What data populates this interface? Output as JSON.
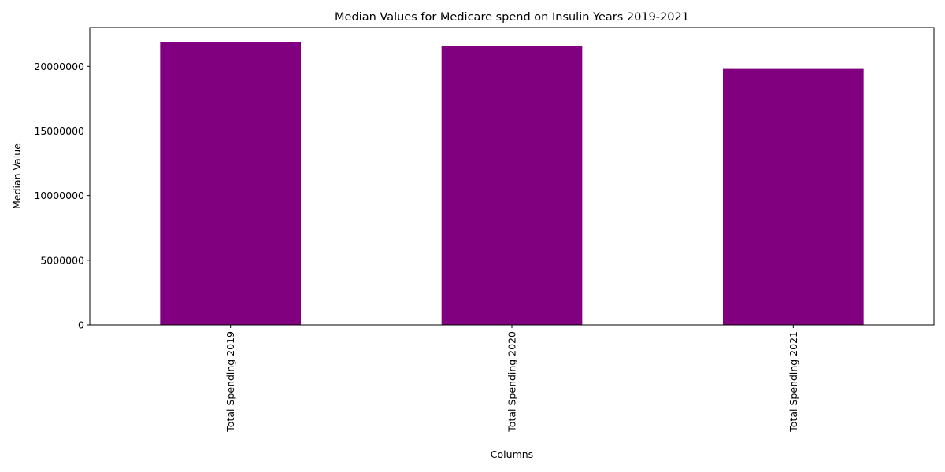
{
  "chart_data": {
    "type": "bar",
    "title": "Median Values for Medicare spend on Insulin Years 2019-2021",
    "xlabel": "Columns",
    "ylabel": "Median Value",
    "categories": [
      "Total Spending 2019",
      "Total Spending 2020",
      "Total Spending 2021"
    ],
    "values": [
      21900000,
      21600000,
      19800000
    ],
    "ylim": [
      0,
      23000000
    ],
    "yticks": [
      0,
      5000000,
      10000000,
      15000000,
      20000000
    ],
    "ytick_labels": [
      "0",
      "5000000",
      "10000000",
      "15000000",
      "20000000"
    ],
    "bar_color": "#800080",
    "grid": false,
    "legend": false
  }
}
